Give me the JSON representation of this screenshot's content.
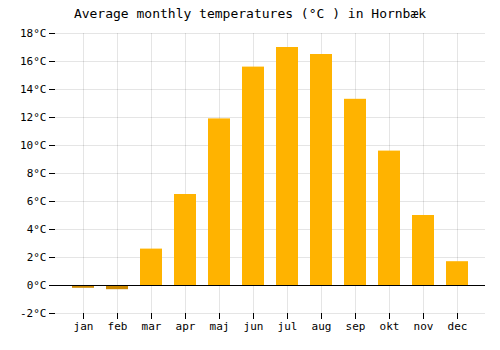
{
  "chart_data": {
    "type": "bar",
    "title": "Average monthly temperatures (°C ) in Hornbæk",
    "categories": [
      "jan",
      "feb",
      "mar",
      "apr",
      "maj",
      "jun",
      "jul",
      "aug",
      "sep",
      "okt",
      "nov",
      "dec"
    ],
    "values": [
      -0.2,
      -0.3,
      2.6,
      6.5,
      11.9,
      15.6,
      17.0,
      16.5,
      13.3,
      9.6,
      5.0,
      1.7
    ],
    "colors": [
      "#CC8800",
      "#CC8800",
      "#FFB300",
      "#FFB300",
      "#FFB300",
      "#FFB300",
      "#FFB300",
      "#FFB300",
      "#FFB300",
      "#FFB300",
      "#FFB300",
      "#FFB300"
    ],
    "ylim": [
      -2,
      18
    ],
    "yticks": [
      {
        "value": -2,
        "label": "-2°C"
      },
      {
        "value": 0,
        "label": "0°C"
      },
      {
        "value": 2,
        "label": "2°C"
      },
      {
        "value": 4,
        "label": "4°C"
      },
      {
        "value": 6,
        "label": "6°C"
      },
      {
        "value": 8,
        "label": "8°C"
      },
      {
        "value": 10,
        "label": "10°C"
      },
      {
        "value": 12,
        "label": "12°C"
      },
      {
        "value": 14,
        "label": "14°C"
      },
      {
        "value": 16,
        "label": "16°C"
      },
      {
        "value": 18,
        "label": "18°C"
      }
    ],
    "grid": true
  }
}
